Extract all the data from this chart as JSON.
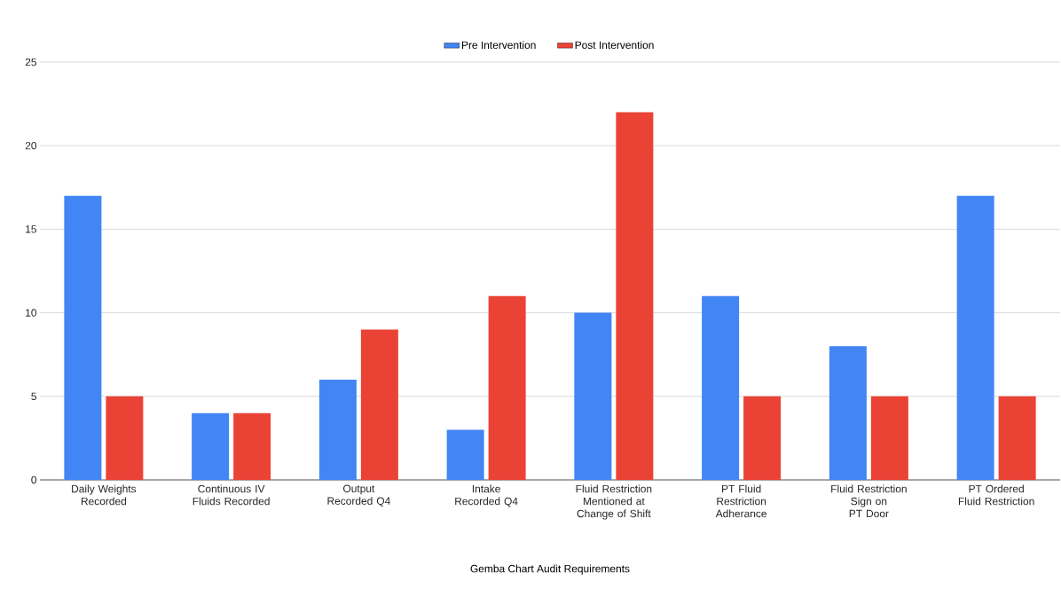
{
  "chart_data": {
    "type": "bar",
    "xlabel": "Gemba Chart Audit Requirements",
    "categories": [
      "Daily Weights Recorded",
      "Continuous IV Fluids Recorded",
      "Output Recorded Q4",
      "Intake Recorded Q4",
      "Fluid Restriction Mentioned at Change of Shift",
      "PT Fluid Restriction Adherance",
      "Fluid Restriction Sign on PT Door",
      "PT Ordered Fluid Restriction"
    ],
    "series": [
      {
        "name": "Pre Intervention",
        "color": "#4285f4",
        "values": [
          17,
          4,
          6,
          3,
          10,
          11,
          8,
          17
        ]
      },
      {
        "name": "Post Intervention",
        "color": "#ea4335",
        "values": [
          5,
          4,
          9,
          11,
          22,
          5,
          5,
          5
        ]
      }
    ],
    "ylim": [
      0,
      25
    ],
    "yticks": [
      0,
      5,
      10,
      15,
      20,
      25
    ],
    "grid": "y",
    "legend": "top"
  }
}
